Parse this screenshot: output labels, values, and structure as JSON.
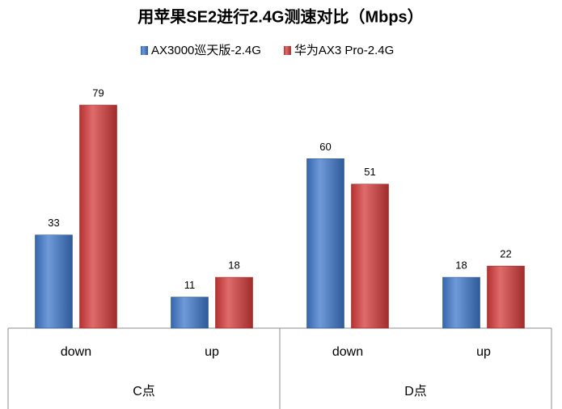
{
  "chart_data": {
    "type": "bar",
    "title": "用苹果SE2进行2.4G测速对比（Mbps）",
    "groups": [
      {
        "name": "C点",
        "categories": [
          "down",
          "up"
        ]
      },
      {
        "name": "D点",
        "categories": [
          "down",
          "up"
        ]
      }
    ],
    "series": [
      {
        "name": "AX3000巡天版-2.4G",
        "color": "#3f78cc",
        "values": [
          33,
          11,
          60,
          18
        ]
      },
      {
        "name": "华为AX3 Pro-2.4G",
        "color": "#d63a3a",
        "values": [
          79,
          18,
          51,
          22
        ]
      }
    ],
    "legend": "top"
  }
}
